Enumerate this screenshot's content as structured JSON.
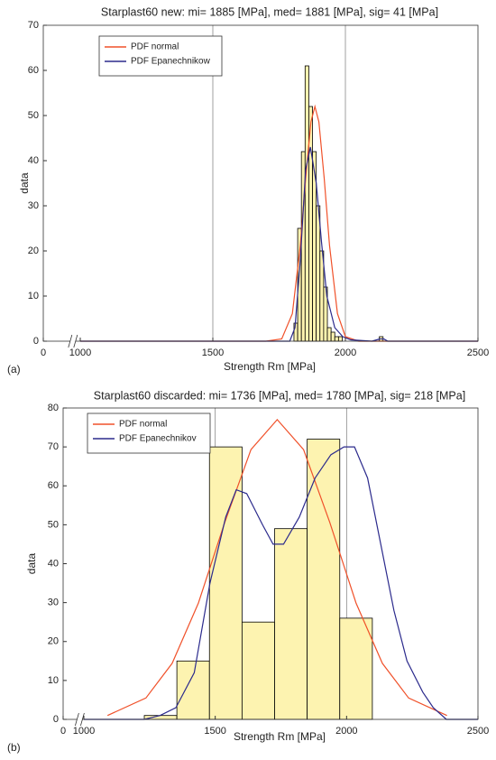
{
  "chart_data": [
    {
      "type": "histogram",
      "title": "Starplast60 new: mi= 1885 [MPa], med= 1881 [MPa], sig= 41 [MPa]",
      "xlabel": "Strength Rm [MPa]",
      "ylabel": "data",
      "panel_label": "(a)",
      "bins": [
        1806,
        1820,
        1834,
        1848,
        1862,
        1876,
        1890,
        1904,
        1918,
        1932,
        1946,
        1960,
        1974,
        1988,
        2002,
        2016,
        2030,
        2044,
        2058,
        2072,
        2086,
        2100,
        2114,
        2128,
        2142,
        2156
      ],
      "values": [
        4,
        25,
        42,
        61,
        52,
        42,
        30,
        20,
        12,
        3,
        2,
        1,
        1,
        0,
        0,
        0,
        0,
        0,
        0,
        0,
        0,
        0,
        0,
        1,
        0
      ],
      "color": "#fdf3b0",
      "series": [
        {
          "name": "PDF normal",
          "color": "#f0512a",
          "x": [
            1000,
            1700,
            1760,
            1800,
            1830,
            1850,
            1870,
            1885,
            1900,
            1920,
            1940,
            1970,
            2000,
            2050,
            2500
          ],
          "values": [
            0,
            0,
            0.5,
            6.1,
            21.2,
            36.1,
            48.6,
            52,
            48.6,
            36.1,
            21.2,
            6.1,
            1.0,
            0,
            0
          ]
        },
        {
          "name": "PDF Epanechnikow",
          "color": "#2b2a8c",
          "x": [
            1000,
            1790,
            1810,
            1830,
            1850,
            1868,
            1890,
            1910,
            1930,
            1960,
            1990,
            2020,
            2100,
            2130,
            2145,
            2160,
            2500
          ],
          "values": [
            0,
            0,
            3,
            18,
            38,
            43,
            35,
            22,
            10,
            3,
            1,
            0.3,
            0,
            0.5,
            0.5,
            0,
            0
          ]
        }
      ],
      "xlim": [
        0,
        2500
      ],
      "x_break": [
        0,
        1000
      ],
      "xticks": [
        0,
        1000,
        1500,
        2000,
        2500
      ],
      "ylim": [
        0,
        70
      ],
      "yticks": [
        0,
        10,
        20,
        30,
        40,
        50,
        60,
        70
      ],
      "grid": "x",
      "legend": "upper left"
    },
    {
      "type": "histogram",
      "title": "Starplast60 discarded: mi= 1736 [MPa], med= 1780 [MPa], sig= 218 [MPa]",
      "xlabel": "Strength Rm [MPa]",
      "ylabel": "data",
      "panel_label": "(b)",
      "bins": [
        1230,
        1354,
        1478,
        1602,
        1726,
        1850,
        1974,
        2098
      ],
      "values": [
        1,
        15,
        70,
        25,
        49,
        72,
        26
      ],
      "color": "#fdf3b0",
      "series": [
        {
          "name": "PDF normal",
          "color": "#f0512a",
          "x": [
            1090,
            1236,
            1336,
            1436,
            1536,
            1636,
            1736,
            1836,
            1936,
            2036,
            2136,
            2236,
            2382
          ],
          "values": [
            1.0,
            5.5,
            14.4,
            29.9,
            50.6,
            69.3,
            77,
            69.3,
            50.6,
            29.9,
            14.4,
            5.5,
            1.0
          ]
        },
        {
          "name": "PDF Epanechnikov",
          "color": "#2b2a8c",
          "x": [
            1000,
            1230,
            1290,
            1350,
            1420,
            1480,
            1540,
            1580,
            1620,
            1680,
            1720,
            1760,
            1820,
            1880,
            1940,
            1990,
            2030,
            2080,
            2130,
            2180,
            2230,
            2290,
            2330,
            2380,
            2500
          ],
          "values": [
            0,
            0,
            1,
            3,
            12,
            35,
            52,
            59,
            58,
            50,
            45,
            45,
            52,
            62,
            68,
            70,
            70,
            62,
            45,
            28,
            15,
            7,
            3,
            0,
            0
          ]
        }
      ],
      "xlim": [
        0,
        2500
      ],
      "x_break": [
        0,
        1000
      ],
      "xticks": [
        0,
        1000,
        1500,
        2000,
        2500
      ],
      "ylim": [
        0,
        80
      ],
      "yticks": [
        0,
        10,
        20,
        30,
        40,
        50,
        60,
        70,
        80
      ],
      "grid": "x",
      "legend": "upper left"
    }
  ]
}
